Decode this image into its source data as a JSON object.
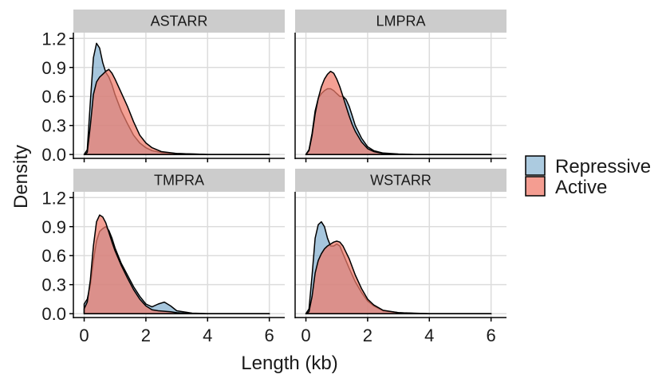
{
  "chart_data": {
    "type": "area",
    "xlabel": "Length (kb)",
    "ylabel": "Density",
    "xlim": [
      -0.35,
      6.5
    ],
    "ylim": [
      -0.04,
      1.26
    ],
    "x_ticks": [
      0,
      2,
      4,
      6
    ],
    "x_tick_labels": [
      "0",
      "2",
      "4",
      "6"
    ],
    "y_ticks": [
      0.0,
      0.3,
      0.6,
      0.9,
      1.2
    ],
    "y_tick_labels": [
      "0.0",
      "0.3",
      "0.6",
      "0.9",
      "1.2"
    ],
    "grid": true,
    "legend": {
      "placement": "right",
      "entries": [
        {
          "label": "Repressive",
          "color": "#9ec2db"
        },
        {
          "label": "Active",
          "color": "#f28c7e"
        }
      ]
    },
    "colors": {
      "Repressive": "#6fa3c8",
      "Active": "#f07b6b",
      "strip": "#cccccc",
      "grid": "#dcdcdc"
    },
    "panels": [
      {
        "title": "ASTARR",
        "series": [
          {
            "name": "Repressive",
            "x": [
              0.0,
              0.1,
              0.2,
              0.3,
              0.4,
              0.5,
              0.6,
              0.7,
              0.8,
              0.9,
              1.0,
              1.2,
              1.4,
              1.6,
              1.8,
              2.0,
              2.2,
              2.5,
              3.0,
              3.5,
              4.0,
              5.0,
              6.0
            ],
            "y": [
              0.0,
              0.05,
              0.55,
              1.0,
              1.15,
              1.1,
              0.95,
              0.85,
              0.8,
              0.72,
              0.62,
              0.45,
              0.32,
              0.2,
              0.12,
              0.07,
              0.04,
              0.02,
              0.01,
              0.005,
              0.0,
              0.0,
              0.0
            ]
          },
          {
            "name": "Active",
            "x": [
              0.0,
              0.1,
              0.2,
              0.3,
              0.4,
              0.5,
              0.6,
              0.7,
              0.8,
              0.9,
              1.0,
              1.2,
              1.4,
              1.6,
              1.8,
              2.0,
              2.2,
              2.5,
              3.0,
              3.5,
              4.0,
              5.0,
              6.0
            ],
            "y": [
              0.0,
              0.02,
              0.3,
              0.62,
              0.75,
              0.8,
              0.83,
              0.86,
              0.88,
              0.84,
              0.78,
              0.64,
              0.5,
              0.34,
              0.2,
              0.12,
              0.07,
              0.03,
              0.01,
              0.005,
              0.0,
              0.0,
              0.0
            ]
          }
        ]
      },
      {
        "title": "LMPRA",
        "series": [
          {
            "name": "Repressive",
            "x": [
              0.0,
              0.1,
              0.2,
              0.3,
              0.4,
              0.5,
              0.6,
              0.7,
              0.8,
              0.9,
              1.0,
              1.1,
              1.2,
              1.3,
              1.4,
              1.5,
              1.6,
              1.8,
              2.0,
              2.2,
              2.5,
              3.0,
              3.5,
              4.0,
              5.0,
              6.0
            ],
            "y": [
              0.0,
              0.05,
              0.22,
              0.45,
              0.58,
              0.63,
              0.66,
              0.68,
              0.68,
              0.66,
              0.63,
              0.6,
              0.6,
              0.57,
              0.5,
              0.4,
              0.3,
              0.17,
              0.08,
              0.04,
              0.015,
              0.005,
              0.0,
              0.0,
              0.0,
              0.0
            ]
          },
          {
            "name": "Active",
            "x": [
              0.0,
              0.1,
              0.2,
              0.3,
              0.4,
              0.5,
              0.6,
              0.7,
              0.8,
              0.9,
              1.0,
              1.1,
              1.2,
              1.3,
              1.4,
              1.5,
              1.6,
              1.8,
              2.0,
              2.2,
              2.5,
              3.0,
              3.5,
              4.0,
              5.0,
              6.0
            ],
            "y": [
              0.0,
              0.04,
              0.2,
              0.42,
              0.58,
              0.7,
              0.78,
              0.83,
              0.86,
              0.84,
              0.78,
              0.7,
              0.6,
              0.5,
              0.4,
              0.31,
              0.24,
              0.13,
              0.06,
              0.03,
              0.01,
              0.003,
              0.0,
              0.0,
              0.0,
              0.0
            ]
          }
        ]
      },
      {
        "title": "TMPRA",
        "series": [
          {
            "name": "Repressive",
            "x": [
              0.0,
              0.1,
              0.2,
              0.3,
              0.4,
              0.5,
              0.6,
              0.7,
              0.8,
              0.9,
              1.0,
              1.2,
              1.4,
              1.6,
              1.8,
              2.0,
              2.2,
              2.4,
              2.6,
              2.8,
              3.0,
              3.5,
              4.0,
              5.0,
              6.0
            ],
            "y": [
              0.1,
              0.15,
              0.3,
              0.55,
              0.75,
              0.85,
              0.88,
              0.9,
              0.86,
              0.78,
              0.68,
              0.52,
              0.4,
              0.28,
              0.18,
              0.1,
              0.07,
              0.1,
              0.12,
              0.08,
              0.03,
              0.005,
              0.0,
              0.0,
              0.0
            ]
          },
          {
            "name": "Active",
            "x": [
              0.0,
              0.1,
              0.2,
              0.3,
              0.4,
              0.5,
              0.6,
              0.7,
              0.8,
              0.9,
              1.0,
              1.2,
              1.4,
              1.6,
              1.8,
              2.0,
              2.2,
              2.4,
              2.6,
              2.8,
              3.0,
              3.5,
              4.0,
              5.0,
              6.0
            ],
            "y": [
              0.05,
              0.12,
              0.35,
              0.7,
              0.95,
              1.02,
              1.0,
              0.94,
              0.84,
              0.74,
              0.65,
              0.5,
              0.37,
              0.25,
              0.15,
              0.08,
              0.04,
              0.03,
              0.025,
              0.02,
              0.01,
              0.0,
              0.0,
              0.0,
              0.0
            ]
          }
        ]
      },
      {
        "title": "WSTARR",
        "series": [
          {
            "name": "Repressive",
            "x": [
              0.0,
              0.1,
              0.2,
              0.3,
              0.4,
              0.5,
              0.6,
              0.7,
              0.8,
              0.9,
              1.0,
              1.1,
              1.2,
              1.4,
              1.6,
              1.8,
              2.0,
              2.2,
              2.5,
              3.0,
              3.5,
              4.0,
              5.0,
              6.0
            ],
            "y": [
              0.0,
              0.05,
              0.4,
              0.78,
              0.92,
              0.95,
              0.9,
              0.78,
              0.7,
              0.7,
              0.72,
              0.7,
              0.62,
              0.47,
              0.33,
              0.22,
              0.13,
              0.08,
              0.03,
              0.01,
              0.005,
              0.0,
              0.0,
              0.0
            ]
          },
          {
            "name": "Active",
            "x": [
              0.0,
              0.1,
              0.2,
              0.3,
              0.4,
              0.5,
              0.6,
              0.7,
              0.8,
              0.9,
              1.0,
              1.1,
              1.2,
              1.4,
              1.6,
              1.8,
              2.0,
              2.2,
              2.5,
              3.0,
              3.5,
              4.0,
              5.0,
              6.0
            ],
            "y": [
              0.0,
              0.02,
              0.18,
              0.42,
              0.55,
              0.62,
              0.67,
              0.7,
              0.72,
              0.74,
              0.75,
              0.74,
              0.7,
              0.57,
              0.4,
              0.26,
              0.15,
              0.09,
              0.035,
              0.01,
              0.003,
              0.0,
              0.0,
              0.0
            ]
          }
        ]
      }
    ]
  }
}
